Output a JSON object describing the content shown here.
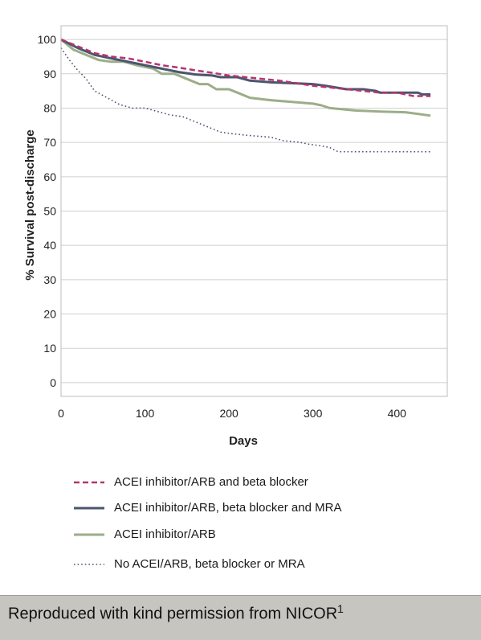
{
  "chart_data": {
    "type": "line",
    "xlabel": "Days",
    "ylabel": "% Survival post-discharge",
    "xlim": [
      0,
      460
    ],
    "ylim": [
      -4,
      104
    ],
    "xticks": [
      0,
      100,
      200,
      300,
      400
    ],
    "yticks": [
      0,
      10,
      20,
      30,
      40,
      50,
      60,
      70,
      80,
      90,
      100
    ],
    "grid": "horizontal",
    "legend_position": "bottom",
    "series": [
      {
        "name": "ACEI inhibitor/ARB and beta blocker",
        "color": "#b5356e",
        "style": "dashed",
        "x": [
          0,
          20,
          40,
          60,
          80,
          100,
          120,
          140,
          160,
          180,
          200,
          220,
          240,
          260,
          280,
          300,
          320,
          340,
          360,
          380,
          400,
          420,
          440
        ],
        "y": [
          100,
          98,
          96,
          95,
          94.5,
          93.5,
          92.5,
          91.8,
          91,
          90.3,
          89.5,
          89,
          88.5,
          88,
          87.3,
          86.5,
          86,
          85.5,
          85,
          84.5,
          84.5,
          83.5,
          83.5
        ]
      },
      {
        "name": "ACEI inhibitor/ARB, beta blocker and MRA",
        "color": "#4b5570",
        "style": "solid",
        "x": [
          0,
          20,
          40,
          60,
          80,
          100,
          120,
          140,
          160,
          180,
          190,
          210,
          225,
          250,
          270,
          300,
          315,
          340,
          360,
          375,
          380,
          425,
          430,
          440
        ],
        "y": [
          100,
          97.5,
          95.5,
          94.5,
          93.5,
          92.5,
          91.5,
          90.5,
          89.8,
          89.5,
          89,
          89,
          88,
          87.5,
          87.3,
          87,
          86.5,
          85.5,
          85.5,
          85,
          84.5,
          84.5,
          84,
          84
        ]
      },
      {
        "name": "ACEI inhibitor/ARB",
        "color": "#9bae88",
        "style": "solid",
        "x": [
          0,
          15,
          30,
          45,
          60,
          75,
          90,
          110,
          120,
          135,
          150,
          165,
          175,
          185,
          200,
          210,
          225,
          250,
          275,
          300,
          310,
          320,
          350,
          380,
          410,
          440
        ],
        "y": [
          100,
          97,
          95.5,
          94,
          93.5,
          93.5,
          92.5,
          91.5,
          90,
          90,
          88.5,
          87,
          87,
          85.5,
          85.5,
          84.5,
          83,
          82.3,
          81.8,
          81.3,
          80.8,
          80,
          79.3,
          79,
          78.8,
          77.8
        ]
      },
      {
        "name": "No ACEI/ARB, beta blocker or MRA",
        "color": "#4b5570",
        "style": "dotted",
        "x": [
          0,
          10,
          20,
          30,
          40,
          55,
          70,
          85,
          100,
          115,
          130,
          145,
          160,
          175,
          190,
          205,
          225,
          250,
          265,
          285,
          295,
          310,
          320,
          330,
          345,
          380,
          420,
          440
        ],
        "y": [
          97.5,
          94,
          91,
          88.5,
          85,
          83,
          81,
          80,
          80,
          79,
          78,
          77.5,
          76,
          74.5,
          73,
          72.5,
          72,
          71.5,
          70.5,
          70,
          69.5,
          69,
          68.5,
          67.3,
          67.3,
          67.3,
          67.3,
          67.3
        ]
      }
    ]
  },
  "footer": {
    "text": "Reproduced with kind permission from NICOR",
    "superscript": "1"
  }
}
